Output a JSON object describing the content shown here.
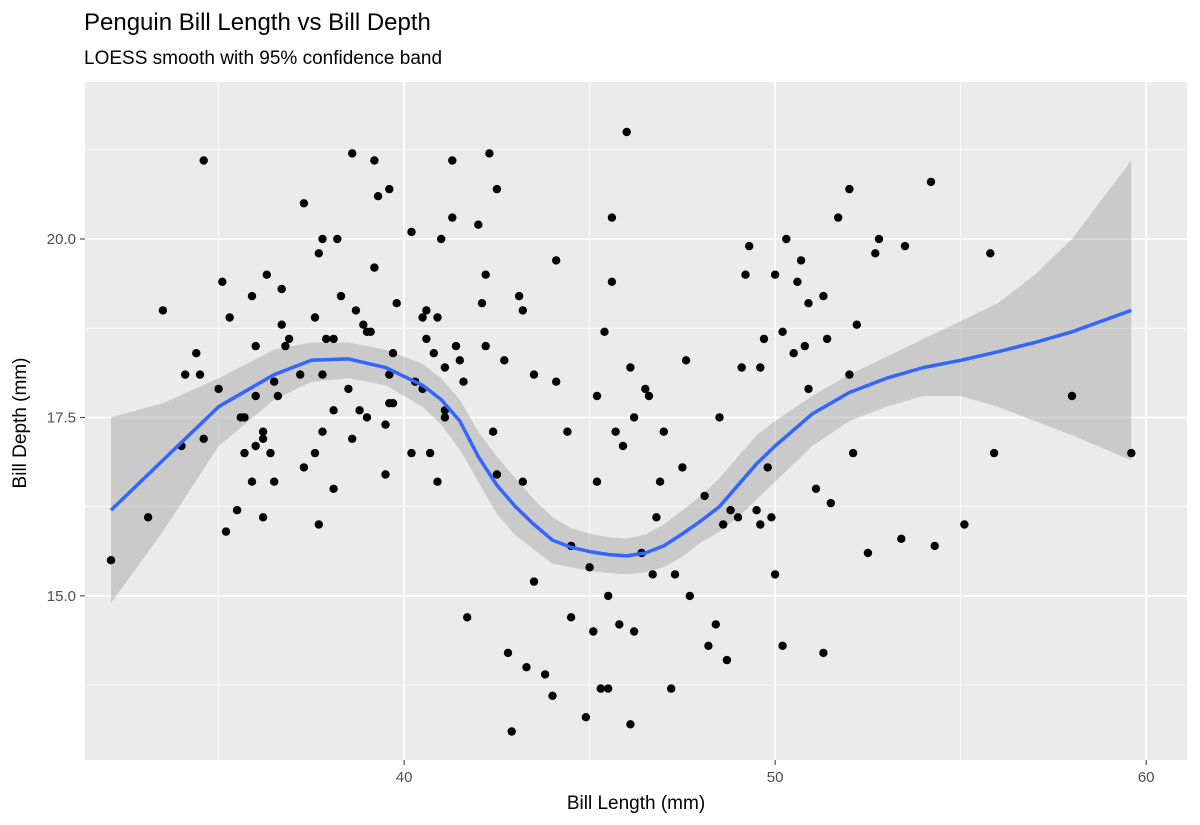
{
  "chart_data": {
    "type": "scatter",
    "title": "Penguin Bill Length vs Bill Depth",
    "subtitle": "LOESS smooth with 95% confidence band",
    "xlabel": "Bill Length (mm)",
    "ylabel": "Bill Depth (mm)",
    "xlim": [
      31.4,
      61.1
    ],
    "ylim": [
      12.7,
      22.2
    ],
    "x_ticks": [
      40,
      50,
      60
    ],
    "x_tick_labels": [
      "40",
      "50",
      "60"
    ],
    "y_ticks": [
      15.0,
      17.5,
      20.0
    ],
    "y_tick_labels": [
      "15.0",
      "17.5",
      "20.0"
    ],
    "grid": true,
    "colors": {
      "panel_background": "#ebebeb",
      "grid_line": "#ffffff",
      "point": "#000000",
      "smooth_line": "#3366ff",
      "confidence_band": "#999999"
    },
    "points": [
      [
        32.1,
        15.5
      ],
      [
        33.1,
        16.1
      ],
      [
        33.5,
        19.0
      ],
      [
        34.0,
        17.1
      ],
      [
        34.1,
        18.1
      ],
      [
        34.4,
        18.4
      ],
      [
        34.5,
        18.1
      ],
      [
        34.6,
        21.1
      ],
      [
        34.6,
        17.2
      ],
      [
        35.0,
        17.9
      ],
      [
        35.1,
        19.4
      ],
      [
        35.2,
        15.9
      ],
      [
        35.3,
        18.9
      ],
      [
        35.5,
        16.2
      ],
      [
        35.6,
        17.5
      ],
      [
        35.7,
        17.0
      ],
      [
        35.7,
        17.5
      ],
      [
        35.9,
        16.6
      ],
      [
        35.9,
        19.2
      ],
      [
        36.0,
        18.5
      ],
      [
        36.0,
        17.8
      ],
      [
        36.0,
        17.1
      ],
      [
        36.2,
        17.3
      ],
      [
        36.2,
        16.1
      ],
      [
        36.2,
        17.2
      ],
      [
        36.3,
        19.5
      ],
      [
        36.4,
        17.0
      ],
      [
        36.5,
        16.6
      ],
      [
        36.5,
        18.0
      ],
      [
        36.6,
        17.8
      ],
      [
        36.7,
        18.8
      ],
      [
        36.7,
        19.3
      ],
      [
        36.8,
        18.5
      ],
      [
        36.9,
        18.6
      ],
      [
        37.2,
        18.1
      ],
      [
        37.3,
        20.5
      ],
      [
        37.3,
        16.8
      ],
      [
        37.6,
        18.9
      ],
      [
        37.6,
        17.0
      ],
      [
        37.7,
        19.8
      ],
      [
        37.7,
        16.0
      ],
      [
        37.8,
        20.0
      ],
      [
        37.8,
        17.3
      ],
      [
        37.8,
        18.1
      ],
      [
        37.9,
        18.6
      ],
      [
        38.1,
        17.6
      ],
      [
        38.1,
        16.5
      ],
      [
        38.1,
        18.6
      ],
      [
        38.2,
        20.0
      ],
      [
        38.3,
        19.2
      ],
      [
        38.5,
        17.9
      ],
      [
        38.6,
        21.2
      ],
      [
        38.6,
        17.2
      ],
      [
        38.7,
        19.0
      ],
      [
        38.8,
        17.6
      ],
      [
        38.9,
        18.8
      ],
      [
        39.0,
        17.5
      ],
      [
        39.0,
        18.7
      ],
      [
        39.1,
        18.7
      ],
      [
        39.2,
        21.1
      ],
      [
        39.2,
        19.6
      ],
      [
        39.3,
        20.6
      ],
      [
        39.5,
        16.7
      ],
      [
        39.5,
        17.4
      ],
      [
        39.6,
        17.7
      ],
      [
        39.6,
        20.7
      ],
      [
        39.6,
        18.1
      ],
      [
        39.7,
        18.4
      ],
      [
        39.7,
        17.7
      ],
      [
        39.8,
        19.1
      ],
      [
        40.2,
        20.1
      ],
      [
        40.2,
        17.0
      ],
      [
        40.3,
        18.0
      ],
      [
        40.5,
        18.9
      ],
      [
        40.5,
        17.9
      ],
      [
        40.6,
        19.0
      ],
      [
        40.6,
        18.6
      ],
      [
        40.7,
        17.0
      ],
      [
        40.8,
        18.4
      ],
      [
        40.9,
        18.9
      ],
      [
        40.9,
        16.6
      ],
      [
        41.0,
        20.0
      ],
      [
        41.1,
        17.6
      ],
      [
        41.1,
        18.2
      ],
      [
        41.1,
        17.5
      ],
      [
        41.3,
        20.3
      ],
      [
        41.3,
        21.1
      ],
      [
        41.4,
        18.5
      ],
      [
        41.5,
        18.3
      ],
      [
        41.6,
        18.0
      ],
      [
        41.7,
        14.7
      ],
      [
        42.0,
        20.2
      ],
      [
        42.1,
        19.1
      ],
      [
        42.2,
        18.5
      ],
      [
        42.2,
        19.5
      ],
      [
        42.3,
        21.2
      ],
      [
        42.4,
        17.3
      ],
      [
        42.5,
        20.7
      ],
      [
        42.5,
        16.7
      ],
      [
        42.7,
        18.3
      ],
      [
        42.8,
        14.2
      ],
      [
        42.9,
        13.1
      ],
      [
        43.1,
        19.2
      ],
      [
        43.2,
        19.0
      ],
      [
        43.2,
        16.6
      ],
      [
        43.3,
        14.0
      ],
      [
        43.5,
        15.2
      ],
      [
        43.5,
        18.1
      ],
      [
        43.8,
        13.9
      ],
      [
        44.0,
        13.6
      ],
      [
        44.1,
        19.7
      ],
      [
        44.1,
        18.0
      ],
      [
        44.4,
        17.3
      ],
      [
        44.5,
        15.7
      ],
      [
        44.5,
        14.7
      ],
      [
        44.9,
        13.3
      ],
      [
        45.0,
        15.4
      ],
      [
        45.1,
        14.5
      ],
      [
        45.2,
        17.8
      ],
      [
        45.2,
        16.6
      ],
      [
        45.3,
        13.7
      ],
      [
        45.4,
        18.7
      ],
      [
        45.5,
        13.7
      ],
      [
        45.5,
        15.0
      ],
      [
        45.6,
        20.3
      ],
      [
        45.6,
        19.4
      ],
      [
        45.7,
        17.3
      ],
      [
        45.8,
        14.6
      ],
      [
        45.9,
        17.1
      ],
      [
        46.0,
        21.5
      ],
      [
        46.1,
        13.2
      ],
      [
        46.1,
        18.2
      ],
      [
        46.2,
        14.5
      ],
      [
        46.2,
        17.5
      ],
      [
        46.4,
        15.6
      ],
      [
        46.5,
        17.9
      ],
      [
        46.6,
        17.8
      ],
      [
        46.7,
        15.3
      ],
      [
        46.8,
        16.1
      ],
      [
        46.9,
        16.6
      ],
      [
        47.0,
        17.3
      ],
      [
        47.2,
        13.7
      ],
      [
        47.3,
        15.3
      ],
      [
        47.5,
        16.8
      ],
      [
        47.6,
        18.3
      ],
      [
        47.7,
        15.0
      ],
      [
        48.1,
        16.4
      ],
      [
        48.2,
        14.3
      ],
      [
        48.4,
        14.6
      ],
      [
        48.5,
        17.5
      ],
      [
        48.6,
        16.0
      ],
      [
        48.7,
        14.1
      ],
      [
        48.8,
        16.2
      ],
      [
        49.0,
        16.1
      ],
      [
        49.1,
        18.2
      ],
      [
        49.2,
        19.5
      ],
      [
        49.3,
        19.9
      ],
      [
        49.5,
        16.2
      ],
      [
        49.6,
        16.0
      ],
      [
        49.6,
        18.2
      ],
      [
        49.7,
        18.6
      ],
      [
        49.8,
        16.8
      ],
      [
        49.9,
        16.1
      ],
      [
        50.0,
        19.5
      ],
      [
        50.0,
        15.3
      ],
      [
        50.2,
        18.7
      ],
      [
        50.2,
        14.3
      ],
      [
        50.3,
        20.0
      ],
      [
        50.5,
        18.4
      ],
      [
        50.6,
        19.4
      ],
      [
        50.7,
        19.7
      ],
      [
        50.8,
        18.5
      ],
      [
        50.9,
        19.1
      ],
      [
        50.9,
        17.9
      ],
      [
        51.1,
        16.5
      ],
      [
        51.3,
        19.2
      ],
      [
        51.3,
        14.2
      ],
      [
        51.4,
        18.6
      ],
      [
        51.5,
        16.3
      ],
      [
        51.7,
        20.3
      ],
      [
        52.0,
        20.7
      ],
      [
        52.0,
        18.1
      ],
      [
        52.1,
        17.0
      ],
      [
        52.2,
        18.8
      ],
      [
        52.5,
        15.6
      ],
      [
        52.7,
        19.8
      ],
      [
        52.8,
        20.0
      ],
      [
        53.4,
        15.8
      ],
      [
        53.5,
        19.9
      ],
      [
        54.2,
        20.8
      ],
      [
        54.3,
        15.7
      ],
      [
        55.1,
        16.0
      ],
      [
        55.8,
        19.8
      ],
      [
        55.9,
        17.0
      ],
      [
        58.0,
        17.8
      ],
      [
        59.6,
        17.0
      ]
    ],
    "smooth": {
      "x": [
        32.1,
        33.5,
        35.0,
        36.5,
        37.5,
        38.5,
        39.5,
        40.5,
        41.0,
        41.5,
        42.0,
        42.5,
        43.0,
        43.5,
        44.0,
        44.5,
        45.0,
        45.5,
        46.0,
        46.5,
        47.0,
        47.5,
        48.0,
        48.5,
        49.0,
        49.5,
        50.0,
        51.0,
        52.0,
        53.0,
        54.0,
        55.0,
        56.0,
        57.0,
        58.0,
        59.6
      ],
      "y": [
        16.2,
        16.9,
        17.65,
        18.1,
        18.3,
        18.32,
        18.2,
        17.95,
        17.75,
        17.45,
        16.95,
        16.55,
        16.25,
        16.0,
        15.78,
        15.68,
        15.62,
        15.58,
        15.56,
        15.6,
        15.7,
        15.87,
        16.05,
        16.25,
        16.55,
        16.85,
        17.1,
        17.55,
        17.85,
        18.05,
        18.2,
        18.3,
        18.42,
        18.55,
        18.7,
        19.0
      ],
      "upper": [
        17.5,
        17.7,
        18.05,
        18.45,
        18.55,
        18.55,
        18.45,
        18.25,
        18.05,
        17.75,
        17.3,
        16.95,
        16.65,
        16.35,
        16.1,
        15.95,
        15.87,
        15.82,
        15.8,
        15.86,
        16.0,
        16.2,
        16.4,
        16.65,
        16.95,
        17.25,
        17.45,
        17.8,
        18.1,
        18.35,
        18.6,
        18.85,
        19.1,
        19.5,
        20.0,
        21.1
      ],
      "lower": [
        14.9,
        15.9,
        17.1,
        17.75,
        18.0,
        18.05,
        17.95,
        17.65,
        17.4,
        17.05,
        16.6,
        16.15,
        15.85,
        15.65,
        15.45,
        15.4,
        15.35,
        15.32,
        15.3,
        15.33,
        15.4,
        15.55,
        15.75,
        15.9,
        16.1,
        16.35,
        16.6,
        17.1,
        17.45,
        17.65,
        17.8,
        17.8,
        17.65,
        17.45,
        17.25,
        16.9
      ]
    }
  }
}
